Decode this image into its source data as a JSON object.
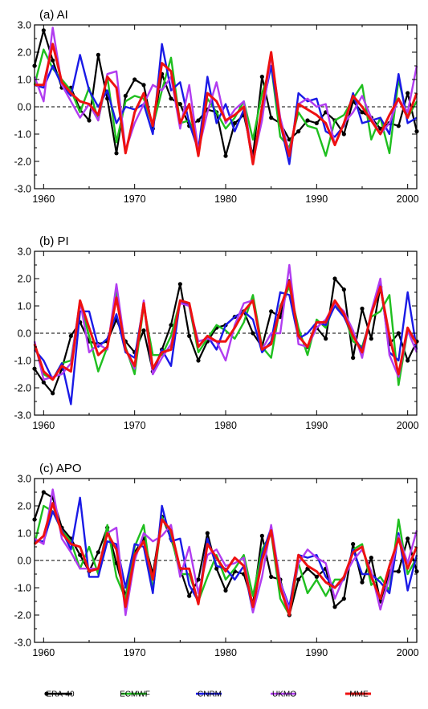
{
  "figure": {
    "legend": [
      {
        "key": "era40",
        "label": "ERA-40",
        "color": "#000000",
        "marker": true
      },
      {
        "key": "ecmwf",
        "label": "ECMWF",
        "color": "#1fbf1f",
        "marker": false
      },
      {
        "key": "cnrm",
        "label": "CNRM",
        "color": "#1a1ae6",
        "marker": false
      },
      {
        "key": "ukmo",
        "label": "UKMO",
        "color": "#b13cf0",
        "marker": false
      },
      {
        "key": "mme",
        "label": "MME",
        "color": "#ee1111",
        "marker": false
      }
    ]
  },
  "chart_data": [
    {
      "type": "line",
      "title": "(a) AI",
      "xlabel": "",
      "ylabel": "",
      "xlim": [
        1959,
        2001
      ],
      "ylim": [
        -3.0,
        3.0
      ],
      "xticks": [
        1960,
        1970,
        1980,
        1990,
        2000
      ],
      "xtick_labels": [
        "1960",
        "1970",
        "1980",
        "1990",
        "2000"
      ],
      "yticks": [
        3.0,
        2.0,
        1.0,
        0.0,
        -1.0,
        -2.0,
        -3.0
      ],
      "ytick_labels": [
        "3.0",
        "2.0",
        "1.0",
        "0.0",
        "-1.0",
        "-2.0",
        "-3.0"
      ],
      "reference_line": 0,
      "grid": false,
      "x": [
        1959,
        1960,
        1961,
        1962,
        1963,
        1964,
        1965,
        1966,
        1967,
        1968,
        1969,
        1970,
        1971,
        1972,
        1973,
        1974,
        1975,
        1976,
        1977,
        1978,
        1979,
        1980,
        1981,
        1982,
        1983,
        1984,
        1985,
        1986,
        1987,
        1988,
        1989,
        1990,
        1991,
        1992,
        1993,
        1994,
        1995,
        1996,
        1997,
        1998,
        1999,
        2000,
        2001
      ],
      "series": [
        {
          "name": "ERA-40",
          "key": "era40",
          "values": [
            1.5,
            2.8,
            1.7,
            0.7,
            0.7,
            -0.1,
            -0.5,
            1.9,
            0.3,
            -1.7,
            0.4,
            1.0,
            0.8,
            -0.8,
            1.2,
            0.3,
            0.1,
            -0.7,
            -0.5,
            -0.1,
            -0.2,
            -1.8,
            -0.6,
            -0.3,
            -1.8,
            1.1,
            -0.4,
            -0.6,
            -1.2,
            -0.9,
            -0.5,
            -0.6,
            -0.2,
            -0.5,
            -1.0,
            0.2,
            -0.2,
            -0.4,
            -0.8,
            -0.6,
            -0.7,
            0.5,
            -0.9
          ]
        },
        {
          "name": "ECMWF",
          "key": "ecmwf",
          "values": [
            0.8,
            2.1,
            1.4,
            1.0,
            0.6,
            -0.2,
            0.7,
            -0.5,
            1.1,
            -1.3,
            0.2,
            0.4,
            0.3,
            -0.7,
            0.6,
            1.8,
            -0.6,
            -0.5,
            -1.5,
            0.3,
            -0.2,
            -0.8,
            -0.4,
            0.2,
            -1.2,
            0.5,
            1.5,
            -1.1,
            -1.5,
            -0.2,
            -0.7,
            -0.8,
            -1.8,
            -0.5,
            -0.3,
            0.3,
            0.8,
            -1.2,
            -0.4,
            -1.7,
            1.0,
            -0.4,
            0.2
          ]
        },
        {
          "name": "CNRM",
          "key": "cnrm",
          "values": [
            0.8,
            0.7,
            1.5,
            0.8,
            0.4,
            1.9,
            0.6,
            0.0,
            0.6,
            -0.6,
            0.0,
            -0.1,
            0.1,
            -1.0,
            2.3,
            0.6,
            0.9,
            -0.6,
            -1.6,
            1.1,
            -0.6,
            0.1,
            -0.9,
            -0.1,
            -2.1,
            -0.1,
            1.5,
            -0.6,
            -2.1,
            0.5,
            0.2,
            0.3,
            -0.9,
            -1.1,
            -0.7,
            0.5,
            -0.6,
            -0.5,
            -0.4,
            -1.0,
            1.2,
            -0.6,
            -0.4
          ]
        },
        {
          "name": "UKMO",
          "key": "ukmo",
          "values": [
            1.1,
            0.2,
            2.9,
            0.8,
            0.2,
            -0.4,
            0.1,
            -0.5,
            1.2,
            1.3,
            -1.6,
            -0.6,
            0.1,
            0.8,
            0.6,
            1.1,
            -0.8,
            0.8,
            -1.6,
            -0.2,
            0.9,
            -0.6,
            -0.1,
            0.2,
            -2.0,
            -0.5,
            1.9,
            -0.4,
            -1.7,
            0.1,
            0.3,
            0.0,
            0.1,
            -1.4,
            -0.6,
            -0.2,
            0.4,
            -0.4,
            -1.0,
            -0.6,
            0.3,
            -0.2,
            1.5
          ]
        },
        {
          "name": "MME",
          "key": "mme",
          "values": [
            0.8,
            0.8,
            2.3,
            0.9,
            0.5,
            0.2,
            0.1,
            -0.3,
            1.1,
            0.7,
            -1.7,
            -0.2,
            0.5,
            -0.7,
            1.6,
            1.3,
            -0.6,
            0.1,
            -1.8,
            0.5,
            0.2,
            -0.5,
            -0.3,
            0.0,
            -2.1,
            0.0,
            2.0,
            -0.6,
            -1.8,
            0.1,
            -0.1,
            -0.3,
            -0.6,
            -1.4,
            -0.6,
            0.4,
            0.0,
            -0.5,
            -1.0,
            -0.3,
            0.3,
            -0.4,
            0.5
          ]
        }
      ]
    },
    {
      "type": "line",
      "title": "(b) PI",
      "xlabel": "",
      "ylabel": "",
      "xlim": [
        1959,
        2001
      ],
      "ylim": [
        -3.0,
        3.0
      ],
      "xticks": [
        1960,
        1970,
        1980,
        1990,
        2000
      ],
      "xtick_labels": [
        "1960",
        "1970",
        "1980",
        "1990",
        "2000"
      ],
      "yticks": [
        3.0,
        2.0,
        1.0,
        0.0,
        -1.0,
        -2.0,
        -3.0
      ],
      "ytick_labels": [
        "3.0",
        "2.0",
        "1.0",
        "0.0",
        "-1.0",
        "-2.0",
        "-3.0"
      ],
      "reference_line": 0,
      "grid": false,
      "x": [
        1959,
        1960,
        1961,
        1962,
        1963,
        1964,
        1965,
        1966,
        1967,
        1968,
        1969,
        1970,
        1971,
        1972,
        1973,
        1974,
        1975,
        1976,
        1977,
        1978,
        1979,
        1980,
        1981,
        1982,
        1983,
        1984,
        1985,
        1986,
        1987,
        1988,
        1989,
        1990,
        1991,
        1992,
        1993,
        1994,
        1995,
        1996,
        1997,
        1998,
        1999,
        2000,
        2001
      ],
      "series": [
        {
          "name": "ERA-40",
          "key": "era40",
          "values": [
            -1.3,
            -1.8,
            -2.2,
            -1.3,
            -0.1,
            0.4,
            -0.3,
            -0.4,
            -0.3,
            0.5,
            -0.3,
            -0.7,
            0.1,
            -1.4,
            -0.6,
            0.3,
            1.8,
            -0.1,
            -1.0,
            -0.3,
            0.2,
            0.3,
            0.6,
            0.8,
            0.0,
            -0.5,
            0.8,
            0.6,
            1.9,
            -0.1,
            -0.5,
            0.2,
            -0.2,
            2.0,
            1.6,
            -0.9,
            0.9,
            -0.2,
            1.7,
            -0.4,
            0.0,
            -1.0,
            -0.3
          ]
        },
        {
          "name": "ECMWF",
          "key": "ecmwf",
          "values": [
            -0.4,
            -1.5,
            -1.7,
            -1.1,
            -1.0,
            1.1,
            -0.1,
            -1.4,
            -0.5,
            1.5,
            -0.5,
            -1.5,
            1.0,
            -0.8,
            -0.8,
            -0.1,
            1.2,
            1.0,
            -0.7,
            -0.2,
            0.3,
            0.1,
            -0.2,
            0.4,
            1.4,
            -0.5,
            -0.9,
            1.0,
            1.7,
            0.2,
            -0.8,
            0.5,
            0.2,
            1.1,
            0.7,
            -0.3,
            -0.5,
            0.6,
            0.8,
            1.4,
            -1.9,
            0.1,
            -0.4
          ]
        },
        {
          "name": "CNRM",
          "key": "cnrm",
          "values": [
            -0.6,
            -1.0,
            -1.7,
            -1.1,
            -2.6,
            0.8,
            0.8,
            -0.5,
            -0.2,
            0.7,
            -0.7,
            -0.9,
            1.1,
            -1.5,
            -0.6,
            -1.2,
            1.2,
            1.0,
            -0.5,
            -0.1,
            -0.6,
            0.3,
            0.6,
            0.8,
            0.5,
            -0.7,
            -0.3,
            1.5,
            1.4,
            -0.2,
            0.0,
            0.4,
            0.3,
            1.0,
            0.6,
            -0.1,
            -0.6,
            0.7,
            1.9,
            -0.7,
            -1.0,
            1.5,
            -0.6
          ]
        },
        {
          "name": "UKMO",
          "key": "ukmo",
          "values": [
            -0.3,
            -1.7,
            -1.6,
            -1.5,
            -1.1,
            1.2,
            -0.7,
            -0.4,
            -0.6,
            1.8,
            -0.6,
            -1.3,
            1.2,
            -1.5,
            -0.9,
            -0.4,
            1.1,
            1.0,
            -0.3,
            -0.2,
            -0.3,
            -1.0,
            0.3,
            1.1,
            1.2,
            -0.6,
            0.0,
            0.0,
            2.5,
            -0.4,
            -0.5,
            0.2,
            0.5,
            1.1,
            0.8,
            0.1,
            -0.9,
            0.8,
            2.0,
            -0.8,
            -1.6,
            0.1,
            -0.7
          ]
        },
        {
          "name": "MME",
          "key": "mme",
          "values": [
            -0.4,
            -1.4,
            -1.7,
            -1.2,
            -1.4,
            1.2,
            0.2,
            -0.8,
            -0.5,
            1.3,
            -0.6,
            -1.2,
            1.1,
            -1.3,
            -0.7,
            -0.6,
            1.2,
            1.1,
            -0.5,
            -0.1,
            -0.3,
            -0.3,
            0.2,
            0.8,
            1.2,
            -0.6,
            -0.4,
            0.9,
            1.9,
            -0.1,
            -0.5,
            0.4,
            0.4,
            1.2,
            0.7,
            -0.1,
            -0.7,
            0.7,
            1.7,
            -0.1,
            -1.5,
            0.2,
            -0.4
          ]
        }
      ]
    },
    {
      "type": "line",
      "title": "(c) APO",
      "xlabel": "",
      "ylabel": "",
      "xlim": [
        1959,
        2001
      ],
      "ylim": [
        -3.0,
        3.0
      ],
      "xticks": [
        1960,
        1970,
        1980,
        1990,
        2000
      ],
      "xtick_labels": [
        "1960",
        "1970",
        "1980",
        "1990",
        "2000"
      ],
      "yticks": [
        3.0,
        2.0,
        1.0,
        0.0,
        -1.0,
        -2.0,
        -3.0
      ],
      "ytick_labels": [
        "3.0",
        "2.0",
        "1.0",
        "0.0",
        "-1.0",
        "-2.0",
        "-3.0"
      ],
      "reference_line": 0,
      "grid": false,
      "x": [
        1959,
        1960,
        1961,
        1962,
        1963,
        1964,
        1965,
        1966,
        1967,
        1968,
        1969,
        1970,
        1971,
        1972,
        1973,
        1974,
        1975,
        1976,
        1977,
        1978,
        1979,
        1980,
        1981,
        1982,
        1983,
        1984,
        1985,
        1986,
        1987,
        1988,
        1989,
        1990,
        1991,
        1992,
        1993,
        1994,
        1995,
        1996,
        1997,
        1998,
        1999,
        2000,
        2001
      ],
      "series": [
        {
          "name": "ERA-40",
          "key": "era40",
          "values": [
            1.5,
            2.5,
            2.3,
            1.2,
            0.8,
            0.2,
            -0.4,
            0.3,
            1.2,
            -0.1,
            -1.3,
            0.3,
            0.8,
            -0.5,
            1.6,
            0.8,
            -0.3,
            -1.3,
            -0.7,
            1.0,
            -0.3,
            -1.1,
            -0.4,
            -0.5,
            -1.6,
            0.9,
            -0.6,
            -0.7,
            -2.0,
            -0.7,
            -0.3,
            -0.6,
            -0.3,
            -1.7,
            -1.4,
            0.6,
            -0.8,
            0.1,
            -1.5,
            -0.4,
            -0.4,
            0.8,
            -0.4
          ]
        },
        {
          "name": "ECMWF",
          "key": "ecmwf",
          "values": [
            0.6,
            2.0,
            1.8,
            1.1,
            0.7,
            -0.3,
            0.5,
            -0.5,
            1.3,
            -0.6,
            -1.4,
            0.5,
            1.3,
            -1.1,
            1.6,
            0.9,
            -0.5,
            -0.5,
            -1.5,
            -0.6,
            0.2,
            -0.7,
            -0.3,
            0.2,
            -1.3,
            0.4,
            1.0,
            -1.4,
            -2.0,
            -0.1,
            -1.2,
            -0.7,
            -1.3,
            -0.7,
            -0.7,
            0.4,
            0.6,
            -0.9,
            -0.6,
            -1.1,
            1.5,
            -0.5,
            0.1
          ]
        },
        {
          "name": "CNRM",
          "key": "cnrm",
          "values": [
            0.7,
            0.7,
            1.8,
            1.1,
            0.4,
            2.3,
            -0.6,
            -0.6,
            0.7,
            0.6,
            -1.0,
            0.6,
            0.5,
            -1.2,
            2.0,
            0.7,
            0.8,
            -0.9,
            -1.5,
            0.8,
            -0.2,
            -0.3,
            -0.7,
            -0.2,
            -1.9,
            0.2,
            1.2,
            -0.8,
            -1.7,
            0.2,
            0.1,
            0.2,
            -0.6,
            -1.0,
            -0.7,
            0.4,
            -0.5,
            -0.5,
            -0.8,
            -1.2,
            1.0,
            -1.1,
            0.2
          ]
        },
        {
          "name": "UKMO",
          "key": "ukmo",
          "values": [
            0.8,
            0.6,
            2.6,
            0.8,
            0.3,
            -0.3,
            -0.3,
            -0.3,
            1.0,
            1.2,
            -2.0,
            0.0,
            1.0,
            0.7,
            0.9,
            1.3,
            -0.6,
            0.5,
            -1.2,
            0.2,
            0.4,
            -0.2,
            -0.1,
            0.1,
            -1.9,
            -0.6,
            1.3,
            -0.8,
            -1.8,
            -0.1,
            0.4,
            0.1,
            -0.1,
            -1.4,
            -0.6,
            0.0,
            0.4,
            -0.4,
            -1.8,
            -0.6,
            0.9,
            -0.1,
            1.1
          ]
        },
        {
          "name": "MME",
          "key": "mme",
          "values": [
            0.6,
            0.9,
            2.1,
            1.0,
            0.6,
            0.5,
            -0.4,
            -0.3,
            1.0,
            0.4,
            -1.7,
            0.2,
            0.7,
            -0.7,
            1.5,
            1.1,
            -0.3,
            -0.3,
            -1.6,
            0.6,
            0.1,
            -0.4,
            0.1,
            -0.2,
            -1.7,
            0.0,
            1.1,
            -1.0,
            -2.0,
            0.2,
            -0.2,
            -0.4,
            -0.8,
            -1.0,
            -0.6,
            0.3,
            0.5,
            -0.6,
            -1.4,
            -0.2,
            0.8,
            -0.3,
            0.5
          ]
        }
      ]
    }
  ]
}
